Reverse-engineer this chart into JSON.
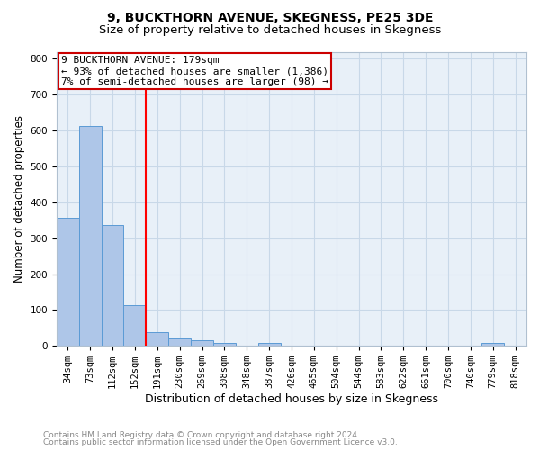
{
  "title": "9, BUCKTHORN AVENUE, SKEGNESS, PE25 3DE",
  "subtitle": "Size of property relative to detached houses in Skegness",
  "xlabel": "Distribution of detached houses by size in Skegness",
  "ylabel": "Number of detached properties",
  "bar_labels": [
    "34sqm",
    "73sqm",
    "112sqm",
    "152sqm",
    "191sqm",
    "230sqm",
    "269sqm",
    "308sqm",
    "348sqm",
    "387sqm",
    "426sqm",
    "465sqm",
    "504sqm",
    "544sqm",
    "583sqm",
    "622sqm",
    "661sqm",
    "700sqm",
    "740sqm",
    "779sqm",
    "818sqm"
  ],
  "bar_values": [
    357,
    612,
    338,
    113,
    39,
    20,
    16,
    8,
    0,
    8,
    0,
    0,
    0,
    0,
    0,
    0,
    0,
    0,
    0,
    7,
    0
  ],
  "bar_color": "#aec6e8",
  "bar_edge_color": "#5b9bd5",
  "red_line_x": 3.5,
  "ylim": [
    0,
    820
  ],
  "yticks": [
    0,
    100,
    200,
    300,
    400,
    500,
    600,
    700,
    800
  ],
  "annotation_line1": "9 BUCKTHORN AVENUE: 179sqm",
  "annotation_line2": "← 93% of detached houses are smaller (1,386)",
  "annotation_line3": "7% of semi-detached houses are larger (98) →",
  "annotation_box_color": "#ffffff",
  "annotation_box_edge_color": "#cc0000",
  "footer_line1": "Contains HM Land Registry data © Crown copyright and database right 2024.",
  "footer_line2": "Contains public sector information licensed under the Open Government Licence v3.0.",
  "background_color": "#ffffff",
  "plot_bg_color": "#e8f0f8",
  "grid_color": "#c8d8e8",
  "title_fontsize": 10,
  "subtitle_fontsize": 9.5,
  "tick_fontsize": 7.5,
  "ylabel_fontsize": 8.5,
  "xlabel_fontsize": 9,
  "annotation_fontsize": 8,
  "footer_fontsize": 6.5,
  "footer_color": "#888888"
}
